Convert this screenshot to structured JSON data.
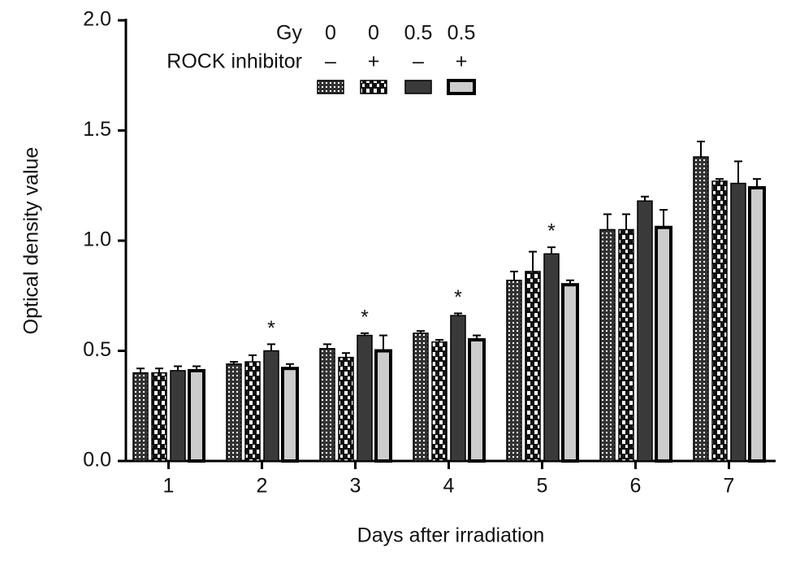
{
  "chart_data": {
    "type": "bar",
    "y_label": "Optical density value",
    "x_label": "Days after irradiation",
    "categories": [
      "1",
      "2",
      "3",
      "4",
      "5",
      "6",
      "7"
    ],
    "ylim": [
      0,
      2
    ],
    "yticks": [
      {
        "value": 0,
        "label": "0.0"
      },
      0.5,
      {
        "value": 1,
        "label": "1.0"
      },
      1.5,
      {
        "value": 2,
        "label": "2.0"
      }
    ],
    "legend": {
      "rows": [
        {
          "label": "Gy",
          "values": [
            "0",
            "0",
            "0.5",
            "0.5"
          ]
        },
        {
          "label": "ROCK inhibitor",
          "values": [
            "–",
            "+",
            "–",
            "+"
          ]
        }
      ]
    },
    "series": [
      {
        "color": "#333333",
        "pattern": "dots",
        "values": [
          0.4,
          0.44,
          0.51,
          0.58,
          0.82,
          1.05,
          1.38
        ],
        "errors": [
          0.02,
          0.01,
          0.02,
          0.01,
          0.04,
          0.07,
          0.07
        ]
      },
      {
        "color": "#111111",
        "pattern": "checker",
        "values": [
          0.4,
          0.45,
          0.47,
          0.54,
          0.86,
          1.05,
          1.27
        ],
        "errors": [
          0.02,
          0.03,
          0.02,
          0.01,
          0.09,
          0.07,
          0.01
        ]
      },
      {
        "color": "#3a3a3a",
        "pattern": "solid",
        "values": [
          0.41,
          0.5,
          0.57,
          0.66,
          0.94,
          1.18,
          1.26
        ],
        "errors": [
          0.02,
          0.03,
          0.01,
          0.01,
          0.03,
          0.02,
          0.1
        ],
        "markers": [
          null,
          "*",
          "*",
          "*",
          "*",
          null,
          null
        ]
      },
      {
        "color": "#cccccc",
        "pattern": "light",
        "values": [
          0.41,
          0.42,
          0.5,
          0.55,
          0.8,
          1.06,
          1.24
        ],
        "errors": [
          0.02,
          0.02,
          0.07,
          0.02,
          0.02,
          0.08,
          0.04
        ]
      }
    ]
  }
}
